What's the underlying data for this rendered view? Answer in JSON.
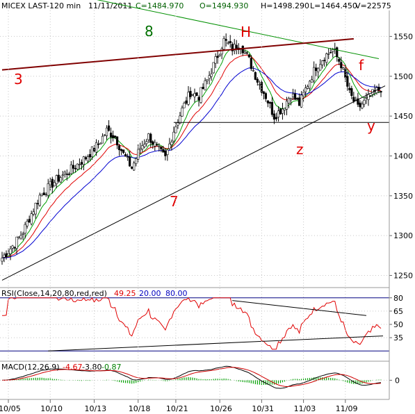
{
  "header": {
    "symbol_period": "MICEX LAST-120 min",
    "date": "11/11/2011",
    "close": "C=1484.970",
    "open": "O=1494.930",
    "high": "H=1498.290",
    "low": "L=1464.450",
    "volume": "V=22575"
  },
  "colors": {
    "up": "#000000",
    "down": "#000000",
    "ma_fast": "#00a000",
    "ma_mid": "#e00000",
    "ma_slow": "#0000d0",
    "trend_green": "#009000",
    "trend_brown": "#800000",
    "label_red": "#e00000",
    "label_green": "#007000",
    "rsi_line": "#e00000",
    "rsi_level": "#000080",
    "macd_line": "#000000",
    "macd_signal": "#d00000",
    "macd_hist": "#00a000"
  },
  "annotations": {
    "h": "H",
    "f": "f",
    "y": "y",
    "z": "z",
    "n3": "3",
    "n7": "7",
    "n8": "8"
  },
  "rsi_panel": {
    "label": "RSI(Close,14,20,80,red,red)",
    "value": "49.25",
    "lower": "20.00",
    "upper": "80.00",
    "ticks": [
      "80",
      "65",
      "50",
      "35"
    ]
  },
  "macd_panel": {
    "label": "MACD(12,26,9)",
    "macd": "-4.67",
    "signal": "-3.80",
    "hist": "-0.87",
    "ticks": [
      "0"
    ]
  },
  "chart_data": {
    "type": "candlestick",
    "price_ticks": [
      1550,
      1500,
      1450,
      1400,
      1350,
      1300,
      1250
    ],
    "ylim": [
      1240,
      1580
    ],
    "date_labels": [
      "10/05",
      "10/10",
      "10/13",
      "10/18",
      "10/21",
      "10/26",
      "10/31",
      "11/03",
      "11/09"
    ],
    "date_label_index": [
      3,
      23,
      44,
      65,
      83,
      104,
      124,
      144,
      164
    ],
    "closes_anchor": [
      [
        0,
        1272
      ],
      [
        6,
        1290
      ],
      [
        10,
        1305
      ],
      [
        18,
        1350
      ],
      [
        26,
        1370
      ],
      [
        34,
        1385
      ],
      [
        40,
        1398
      ],
      [
        46,
        1415
      ],
      [
        50,
        1432
      ],
      [
        54,
        1424
      ],
      [
        58,
        1402
      ],
      [
        62,
        1385
      ],
      [
        66,
        1410
      ],
      [
        70,
        1425
      ],
      [
        74,
        1410
      ],
      [
        78,
        1397
      ],
      [
        82,
        1432
      ],
      [
        86,
        1458
      ],
      [
        90,
        1480
      ],
      [
        94,
        1475
      ],
      [
        98,
        1495
      ],
      [
        102,
        1520
      ],
      [
        106,
        1545
      ],
      [
        110,
        1535
      ],
      [
        114,
        1540
      ],
      [
        118,
        1520
      ],
      [
        122,
        1495
      ],
      [
        126,
        1475
      ],
      [
        130,
        1450
      ],
      [
        134,
        1460
      ],
      [
        138,
        1478
      ],
      [
        142,
        1465
      ],
      [
        146,
        1490
      ],
      [
        150,
        1512
      ],
      [
        154,
        1525
      ],
      [
        158,
        1533
      ],
      [
        162,
        1515
      ],
      [
        166,
        1478
      ],
      [
        170,
        1460
      ],
      [
        174,
        1470
      ],
      [
        178,
        1480
      ],
      [
        181,
        1485
      ]
    ],
    "trendlines": [
      {
        "name": "7",
        "x": [
          0,
          183
        ],
        "y": [
          1244,
          1488
        ]
      },
      {
        "name": "8",
        "x": [
          20,
          180
        ],
        "y": [
          1610,
          1522
        ]
      },
      {
        "name": "3",
        "x": [
          0,
          168
        ],
        "y": [
          1508,
          1547
        ]
      },
      {
        "name": "support",
        "x": [
          82,
          185
        ],
        "y": [
          1442,
          1442
        ]
      }
    ],
    "rsi_levels": [
      80,
      65,
      50,
      35,
      20
    ],
    "rsi_ylim": [
      10,
      90
    ],
    "rsi_trendlines": [
      {
        "x": [
          110,
          174
        ],
        "y": [
          77,
          60
        ]
      },
      {
        "x": [
          22,
          182
        ],
        "y": [
          20,
          37
        ]
      }
    ],
    "macd_ylim": [
      -35,
      15
    ]
  }
}
